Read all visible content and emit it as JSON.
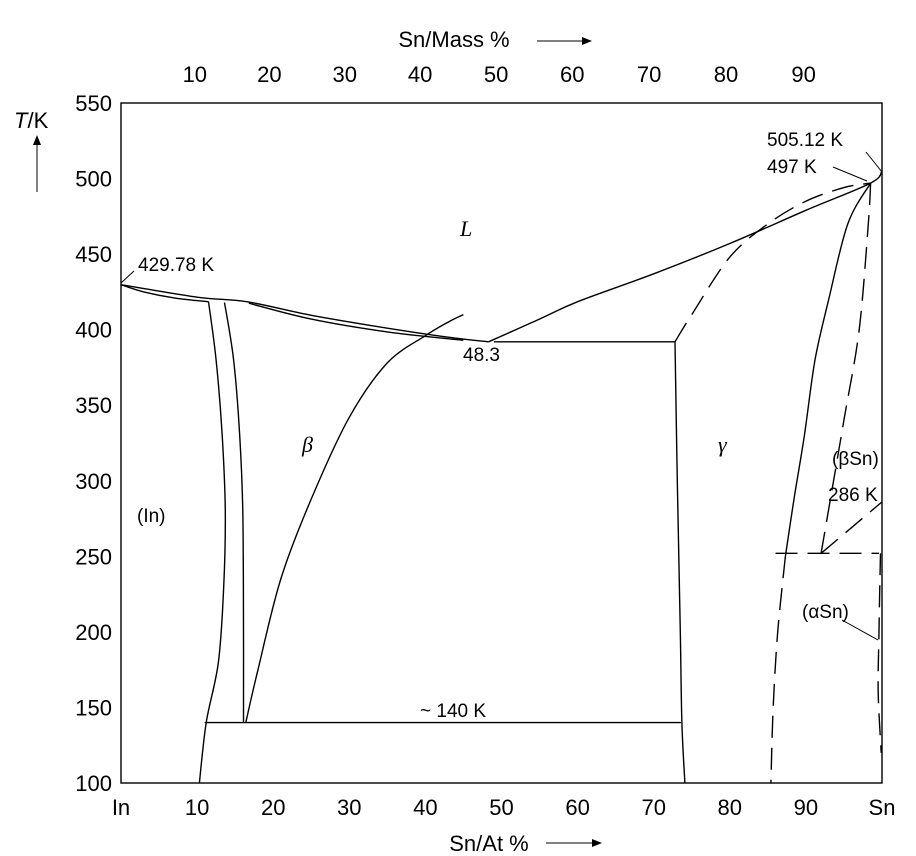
{
  "chart_data": {
    "type": "phase-diagram",
    "title": "",
    "bottom_axis": {
      "label": "Sn/At %",
      "range": [
        0,
        100
      ],
      "tick_labels": [
        "In",
        "10",
        "20",
        "30",
        "40",
        "50",
        "60",
        "70",
        "80",
        "90",
        "Sn"
      ],
      "tick_values": [
        0,
        10,
        20,
        30,
        40,
        50,
        60,
        70,
        80,
        90,
        100
      ]
    },
    "top_axis": {
      "label": "Sn/Mass %",
      "tick_labels": [
        "10",
        "20",
        "30",
        "40",
        "50",
        "60",
        "70",
        "80",
        "90"
      ],
      "tick_positions_at_pct": [
        9.7,
        19.5,
        29.4,
        39.3,
        49.3,
        59.3,
        69.4,
        79.5,
        89.7
      ]
    },
    "left_axis": {
      "label_italic": "T",
      "label_rest": "/K",
      "range": [
        100,
        550
      ],
      "tick_labels": [
        "550",
        "500",
        "450",
        "400",
        "350",
        "300",
        "250",
        "200",
        "150",
        "100"
      ],
      "tick_values": [
        550,
        500,
        450,
        400,
        350,
        300,
        250,
        200,
        150,
        100
      ]
    },
    "annotations": {
      "in_melting": "429.78 K",
      "sn_melting": "505.12 K",
      "peritectic": "497 K",
      "eutectic_comp": "48.3",
      "low_temp": "~ 140 K",
      "allotropic": "286 K"
    },
    "phase_labels": {
      "liquid": "L",
      "beta": "β",
      "gamma": "γ",
      "indium": "(In)",
      "beta_sn": "(βSn)",
      "alpha_sn": "(αSn)"
    },
    "curves": [
      {
        "name": "liquidus-in",
        "style": "solid",
        "points": [
          [
            0,
            429.78
          ],
          [
            10,
            421.5
          ],
          [
            16.5,
            418.5
          ],
          [
            25,
            409.5
          ],
          [
            35,
            401
          ],
          [
            43,
            395
          ],
          [
            48.3,
            392
          ]
        ]
      },
      {
        "name": "solidus-in-upper",
        "style": "solid",
        "points": [
          [
            0,
            429.78
          ],
          [
            3,
            425
          ],
          [
            7,
            421
          ],
          [
            11.5,
            418.5
          ]
        ]
      },
      {
        "name": "solidus-in-beta",
        "style": "solid",
        "points": [
          [
            16.8,
            417.5
          ],
          [
            25,
            407
          ],
          [
            35,
            398.5
          ],
          [
            45,
            393
          ]
        ]
      },
      {
        "name": "liquidus-sn",
        "style": "solid",
        "points": [
          [
            48.3,
            392
          ],
          [
            55,
            407
          ],
          [
            60,
            418.5
          ],
          [
            70,
            437
          ],
          [
            80,
            457
          ],
          [
            90,
            479
          ],
          [
            98.5,
            497
          ],
          [
            100,
            505.12
          ]
        ]
      },
      {
        "name": "peritectic-line",
        "style": "solid",
        "points": [
          [
            49,
            392
          ],
          [
            72.8,
            392
          ]
        ]
      },
      {
        "name": "eutectoid-140",
        "style": "solid",
        "points": [
          [
            11,
            140
          ],
          [
            73.6,
            140
          ]
        ]
      },
      {
        "name": "in-solvus-left",
        "style": "solid",
        "points": [
          [
            11.5,
            418.5
          ],
          [
            12.5,
            380
          ],
          [
            13.3,
            330
          ],
          [
            13.7,
            280
          ],
          [
            13.5,
            230
          ],
          [
            12.8,
            180
          ],
          [
            11.2,
            140
          ],
          [
            10.3,
            100
          ]
        ]
      },
      {
        "name": "in-solvus-right",
        "style": "solid",
        "points": [
          [
            13.6,
            418
          ],
          [
            14.8,
            380
          ],
          [
            15.6,
            330
          ],
          [
            16,
            280
          ],
          [
            16.1,
            200
          ],
          [
            16.1,
            140
          ]
        ]
      },
      {
        "name": "beta-boundary",
        "style": "solid",
        "points": [
          [
            16.4,
            140
          ],
          [
            18,
            175
          ],
          [
            21,
            235
          ],
          [
            25,
            288
          ],
          [
            30,
            342
          ],
          [
            35,
            378
          ],
          [
            40,
            396
          ],
          [
            43,
            405
          ],
          [
            45,
            410
          ]
        ]
      },
      {
        "name": "gamma-left",
        "style": "solid",
        "points": [
          [
            72.8,
            392
          ],
          [
            73.1,
            300
          ],
          [
            73.5,
            200
          ],
          [
            73.7,
            140
          ],
          [
            74.1,
            100
          ]
        ]
      },
      {
        "name": "gamma-right-dashed",
        "style": "dashed",
        "points": [
          [
            72.8,
            392
          ],
          [
            75,
            410
          ],
          [
            80,
            448
          ],
          [
            85,
            470
          ],
          [
            90,
            485
          ],
          [
            95,
            494
          ],
          [
            98.5,
            497
          ]
        ]
      },
      {
        "name": "beta-sn-solidus",
        "style": "solid",
        "points": [
          [
            98.5,
            497
          ],
          [
            95.5,
            470
          ],
          [
            93,
            420
          ],
          [
            91.2,
            380
          ],
          [
            89.8,
            330
          ],
          [
            88.5,
            290
          ],
          [
            87.3,
            250
          ]
        ]
      },
      {
        "name": "beta-sn-dashed-lower",
        "style": "dashed",
        "points": [
          [
            87.3,
            250
          ],
          [
            86.3,
            200
          ],
          [
            85.7,
            150
          ],
          [
            85.4,
            100
          ]
        ]
      },
      {
        "name": "sn-solvus-dashed",
        "style": "dashed",
        "points": [
          [
            98.5,
            497
          ],
          [
            98.2,
            470
          ],
          [
            97,
            400
          ],
          [
            95,
            340
          ],
          [
            92,
            252
          ]
        ]
      },
      {
        "name": "allotropic-line",
        "style": "dashed",
        "points": [
          [
            86,
            252
          ],
          [
            99.6,
            252
          ]
        ]
      },
      {
        "name": "sn-allotropic-dashed",
        "style": "dashed",
        "points": [
          [
            92,
            252
          ],
          [
            100,
            286
          ]
        ]
      },
      {
        "name": "alpha-sn-dashed",
        "style": "dashed",
        "points": [
          [
            99.8,
            252
          ],
          [
            99.6,
            200
          ],
          [
            99.5,
            160
          ],
          [
            99.9,
            120
          ]
        ]
      }
    ]
  }
}
